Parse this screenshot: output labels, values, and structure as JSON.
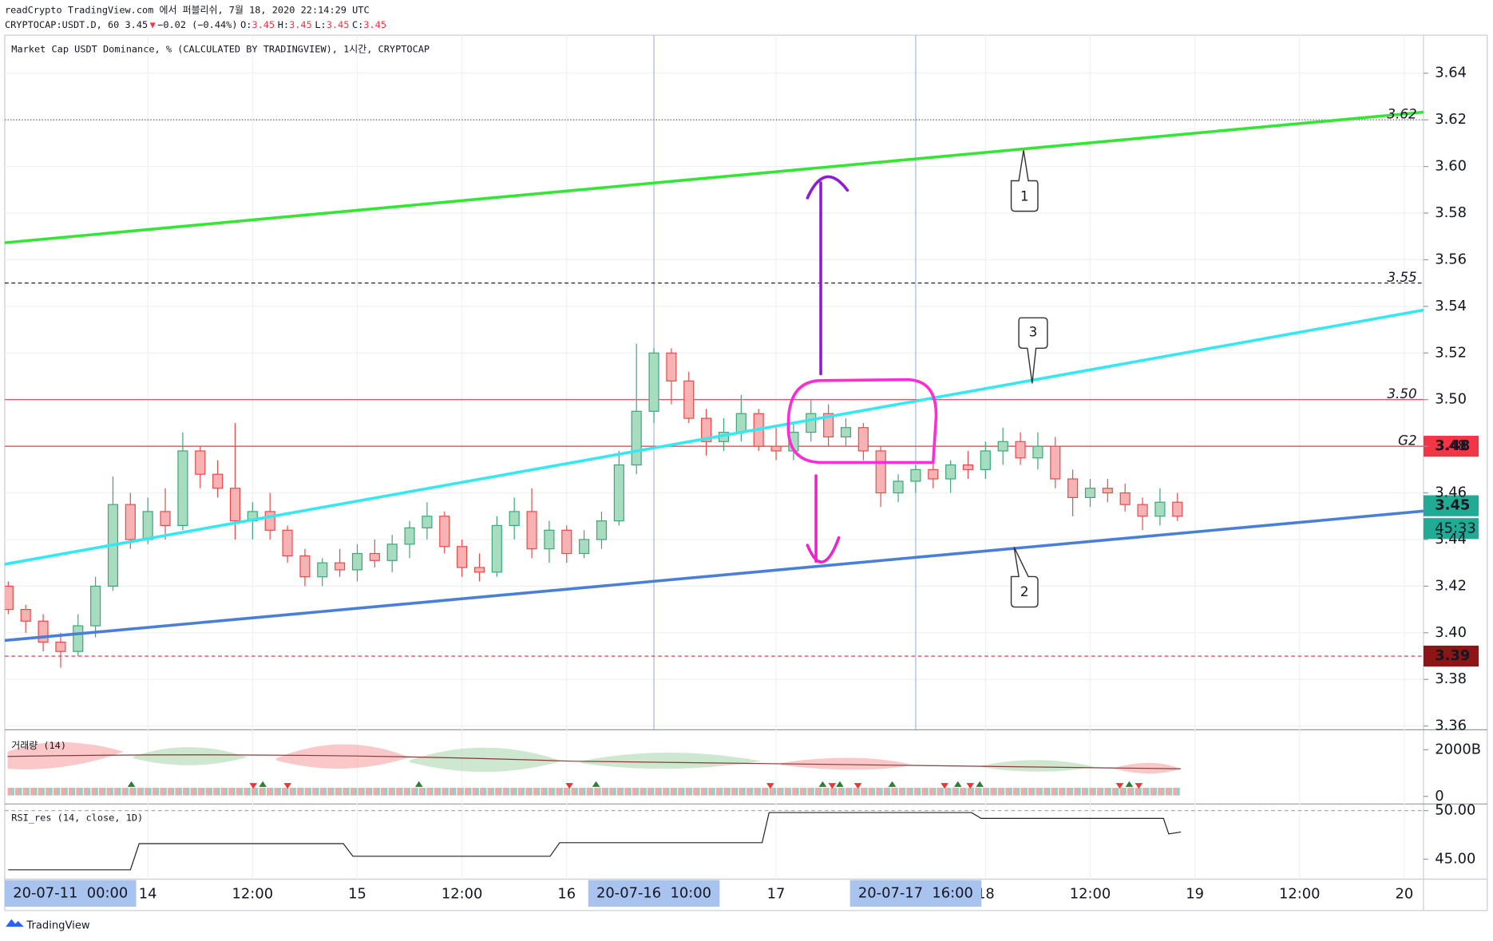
{
  "header": {
    "line1": "readCrypto TradingView.com 에서 퍼블리쉬, 7월 18, 2020 22:14:29 UTC",
    "symbol": "CRYPTOCAP:USDT.D, 60 3.45",
    "change": "−0.02 (−0.44%)",
    "ohlc": [
      {
        "k": "O:",
        "v": "3.45"
      },
      {
        "k": "H:",
        "v": "3.45"
      },
      {
        "k": "L:",
        "v": "3.45"
      },
      {
        "k": "C:",
        "v": "3.45"
      }
    ]
  },
  "chart_data": [
    {
      "type": "candlestick",
      "title": "Market Cap USDT Dominance, % (CALCULATED BY TRADINGVIEW), 1시간, CRYPTOCAP",
      "up_color": "#a8dcc0",
      "up_stroke": "#3aa876",
      "down_color": "#f7b3b3",
      "down_stroke": "#e84a4a",
      "xlim": [
        -16.4,
        146.2
      ],
      "ylim": [
        3.3584,
        3.6563
      ],
      "x": [
        -16,
        -14,
        -12,
        -10,
        -8,
        -6,
        -4,
        -2,
        0,
        2,
        4,
        6,
        8,
        10,
        12,
        14,
        16,
        18,
        20,
        22,
        24,
        26,
        28,
        30,
        32,
        34,
        36,
        38,
        40,
        42,
        44,
        46,
        48,
        50,
        52,
        54,
        56,
        58,
        60,
        62,
        64,
        66,
        68,
        70,
        72,
        74,
        76,
        78,
        80,
        82,
        84,
        86,
        88,
        90,
        92,
        94,
        96,
        98,
        100,
        102,
        104,
        106,
        108,
        110,
        112,
        114,
        116,
        118
      ],
      "ohlc": [
        [
          3.42,
          3.422,
          3.408,
          3.41
        ],
        [
          3.41,
          3.412,
          3.4,
          3.405
        ],
        [
          3.405,
          3.408,
          3.392,
          3.396
        ],
        [
          3.396,
          3.4,
          3.385,
          3.392
        ],
        [
          3.392,
          3.408,
          3.39,
          3.403
        ],
        [
          3.403,
          3.424,
          3.398,
          3.42
        ],
        [
          3.42,
          3.467,
          3.418,
          3.455
        ],
        [
          3.455,
          3.46,
          3.436,
          3.44
        ],
        [
          3.44,
          3.458,
          3.438,
          3.452
        ],
        [
          3.452,
          3.462,
          3.44,
          3.446
        ],
        [
          3.446,
          3.486,
          3.444,
          3.478
        ],
        [
          3.478,
          3.48,
          3.462,
          3.468
        ],
        [
          3.468,
          3.474,
          3.458,
          3.462
        ],
        [
          3.462,
          3.49,
          3.44,
          3.448
        ],
        [
          3.448,
          3.456,
          3.44,
          3.452
        ],
        [
          3.452,
          3.46,
          3.44,
          3.444
        ],
        [
          3.444,
          3.446,
          3.43,
          3.433
        ],
        [
          3.433,
          3.436,
          3.42,
          3.424
        ],
        [
          3.424,
          3.432,
          3.42,
          3.43
        ],
        [
          3.43,
          3.436,
          3.424,
          3.427
        ],
        [
          3.427,
          3.438,
          3.422,
          3.434
        ],
        [
          3.434,
          3.44,
          3.428,
          3.431
        ],
        [
          3.431,
          3.442,
          3.426,
          3.438
        ],
        [
          3.438,
          3.448,
          3.432,
          3.445
        ],
        [
          3.445,
          3.456,
          3.44,
          3.45
        ],
        [
          3.45,
          3.452,
          3.434,
          3.437
        ],
        [
          3.437,
          3.44,
          3.424,
          3.428
        ],
        [
          3.428,
          3.434,
          3.422,
          3.426
        ],
        [
          3.426,
          3.45,
          3.424,
          3.446
        ],
        [
          3.446,
          3.458,
          3.44,
          3.452
        ],
        [
          3.452,
          3.462,
          3.432,
          3.436
        ],
        [
          3.436,
          3.448,
          3.43,
          3.444
        ],
        [
          3.444,
          3.446,
          3.43,
          3.434
        ],
        [
          3.434,
          3.444,
          3.432,
          3.44
        ],
        [
          3.44,
          3.452,
          3.436,
          3.448
        ],
        [
          3.448,
          3.478,
          3.446,
          3.472
        ],
        [
          3.472,
          3.524,
          3.468,
          3.495
        ],
        [
          3.495,
          3.522,
          3.49,
          3.52
        ],
        [
          3.52,
          3.522,
          3.498,
          3.508
        ],
        [
          3.508,
          3.512,
          3.49,
          3.492
        ],
        [
          3.492,
          3.496,
          3.476,
          3.482
        ],
        [
          3.482,
          3.492,
          3.478,
          3.486
        ],
        [
          3.486,
          3.502,
          3.482,
          3.494
        ],
        [
          3.494,
          3.496,
          3.478,
          3.48
        ],
        [
          3.48,
          3.488,
          3.474,
          3.478
        ],
        [
          3.478,
          3.49,
          3.474,
          3.486
        ],
        [
          3.486,
          3.5,
          3.482,
          3.494
        ],
        [
          3.494,
          3.498,
          3.48,
          3.484
        ],
        [
          3.484,
          3.492,
          3.48,
          3.488
        ],
        [
          3.488,
          3.49,
          3.474,
          3.478
        ],
        [
          3.478,
          3.48,
          3.454,
          3.46
        ],
        [
          3.46,
          3.468,
          3.456,
          3.465
        ],
        [
          3.465,
          3.472,
          3.46,
          3.47
        ],
        [
          3.47,
          3.476,
          3.462,
          3.466
        ],
        [
          3.466,
          3.474,
          3.46,
          3.472
        ],
        [
          3.472,
          3.478,
          3.466,
          3.47
        ],
        [
          3.47,
          3.482,
          3.466,
          3.478
        ],
        [
          3.478,
          3.488,
          3.472,
          3.482
        ],
        [
          3.482,
          3.486,
          3.472,
          3.475
        ],
        [
          3.475,
          3.486,
          3.47,
          3.48
        ],
        [
          3.48,
          3.484,
          3.462,
          3.466
        ],
        [
          3.466,
          3.47,
          3.45,
          3.458
        ],
        [
          3.458,
          3.466,
          3.454,
          3.462
        ],
        [
          3.462,
          3.466,
          3.456,
          3.46
        ],
        [
          3.46,
          3.464,
          3.452,
          3.455
        ],
        [
          3.455,
          3.458,
          3.444,
          3.45
        ],
        [
          3.45,
          3.462,
          3.446,
          3.456
        ],
        [
          3.456,
          3.46,
          3.448,
          3.45
        ]
      ],
      "yticks": [
        3.36,
        3.38,
        {
          "value": 3.4,
          "label": "3.40"
        },
        3.42,
        3.44,
        3.46,
        3.48,
        {
          "value": 3.5,
          "label": "3.50"
        },
        3.52,
        3.54,
        3.56,
        3.58,
        {
          "value": 3.6,
          "label": "3.60"
        },
        3.62,
        3.64
      ],
      "xticks": [
        {
          "value": 0,
          "label": "14"
        },
        {
          "value": 12,
          "label": "12:00"
        },
        {
          "value": 24,
          "label": "15"
        },
        {
          "value": 36,
          "label": "12:00"
        },
        {
          "value": 48,
          "label": "16"
        },
        {
          "value": 72,
          "label": "17"
        },
        {
          "value": 96,
          "label": "18"
        },
        {
          "value": 108,
          "label": "12:00"
        },
        {
          "value": 120,
          "label": "19"
        },
        {
          "value": 132,
          "label": "12:00"
        },
        {
          "value": 144,
          "label": "20"
        }
      ],
      "x_highlights": [
        {
          "value": -12,
          "label": "20-07-11  00:00",
          "line": false
        },
        {
          "value": 58,
          "label": "20-07-16  10:00",
          "line": true
        },
        {
          "value": 88,
          "label": "20-07-17  16:00",
          "line": true
        }
      ],
      "hlines": [
        {
          "value": 3.62,
          "label": "3.62",
          "color": "#555555",
          "style": "dotted"
        },
        {
          "value": 3.55,
          "label": "3.55",
          "color": "#222222",
          "style": "dashed"
        },
        {
          "value": 3.5,
          "label": "3.50",
          "color": "#f23645",
          "style": "solid"
        },
        {
          "value": 3.48,
          "label": "G2",
          "color": "#f23645",
          "style": "solid"
        },
        {
          "value": 3.39,
          "color": "#d32f2f",
          "style": "dashed"
        }
      ],
      "badges": [
        {
          "value": 3.48,
          "label": "3.48",
          "color": "#f23645"
        },
        {
          "value": 3.45,
          "label": "3.45",
          "color": "#22ab94",
          "sub": "45:33"
        },
        {
          "value": 3.39,
          "label": "3.39",
          "color": "#8e1515"
        }
      ],
      "trendlines": [
        {
          "color": "#33e633",
          "points": [
            [
              -16.4,
              3.5673
            ],
            [
              146.2,
              3.6233
            ]
          ]
        },
        {
          "color": "#33e8f0",
          "points": [
            [
              -16.4,
              3.4294
            ],
            [
              146.2,
              3.5384
            ]
          ]
        },
        {
          "color": "#4a7fd9",
          "points": [
            [
              -16.4,
              3.3967
            ],
            [
              146.2,
              3.4522
            ]
          ]
        }
      ],
      "callouts": [
        "1",
        "2",
        "3"
      ]
    },
    {
      "type": "volume",
      "title": "거래량 (14)",
      "ylim": [
        -326530612245,
        2734693877551
      ],
      "yticks": [
        {
          "value": 2000000000000,
          "label": "2000B"
        },
        0
      ]
    },
    {
      "type": "line",
      "title": "RSI_res (14, close, 1D)",
      "color": "#222222",
      "ylim": [
        42.94,
        50.39
      ],
      "yticks": [
        {
          "value": 50,
          "label": "50.00"
        },
        {
          "value": 45,
          "label": "45.00"
        }
      ],
      "levels": [
        50
      ],
      "x": [
        -16,
        -2,
        -1,
        22.4,
        23.5,
        46.1,
        47.2,
        70.4,
        71.2,
        94.4,
        95.5,
        116.4,
        117,
        118.4
      ],
      "values": [
        43.9,
        43.9,
        46.6,
        46.6,
        45.3,
        45.3,
        46.7,
        46.7,
        49.8,
        49.8,
        49.2,
        49.2,
        47.6,
        47.8
      ]
    }
  ],
  "footer": {
    "brand": "TradingView"
  }
}
